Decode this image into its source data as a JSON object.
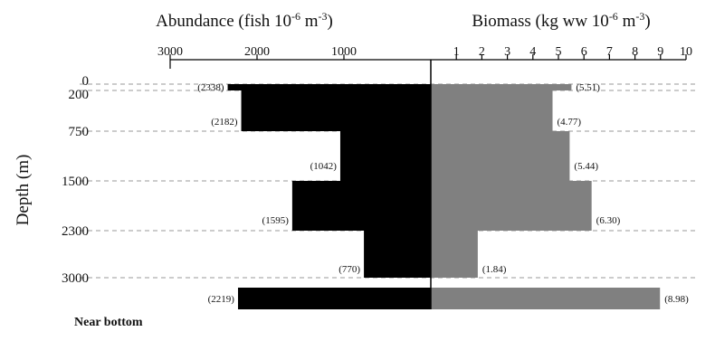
{
  "chart_data": {
    "type": "bar",
    "layout": "back-to-back horizontal bars",
    "ylabel": "Depth (m)",
    "depth_ticks": [
      "0",
      "200",
      "750",
      "1500",
      "2300",
      "3000"
    ],
    "bottom_label": "Near bottom",
    "layers": [
      "0-200",
      "200-750",
      "750-1500",
      "1500-2300",
      "2300-3000",
      "Near bottom"
    ],
    "abundance": {
      "title": "Abundance (fish 10",
      "title_sup": "-6",
      "title_tail": " m",
      "title_sup2": "-3",
      "title_close": ")",
      "xlim": [
        3000,
        0
      ],
      "ticks": [
        3000,
        2000,
        1000
      ],
      "values": [
        2338,
        2182,
        1042,
        1595,
        770,
        2219
      ],
      "labels": [
        "(2338)",
        "(2182)",
        "(1042)",
        "(1595)",
        "(770)",
        "(2219)"
      ],
      "color": "#000000"
    },
    "biomass": {
      "title": "Biomass (kg ww 10",
      "title_sup": "-6",
      "title_tail": " m",
      "title_sup2": "-3",
      "title_close": ")",
      "xlim": [
        0,
        10
      ],
      "ticks": [
        1,
        2,
        3,
        4,
        5,
        6,
        7,
        8,
        9,
        10
      ],
      "values": [
        5.51,
        4.77,
        5.44,
        6.3,
        1.84,
        8.98
      ],
      "labels": [
        "(5.51)",
        "(4.77)",
        "(5.44)",
        "(6.30)",
        "(1.84)",
        "(8.98)"
      ],
      "color": "#808080"
    },
    "grid": "dashed horizontal lines at depth ticks"
  }
}
